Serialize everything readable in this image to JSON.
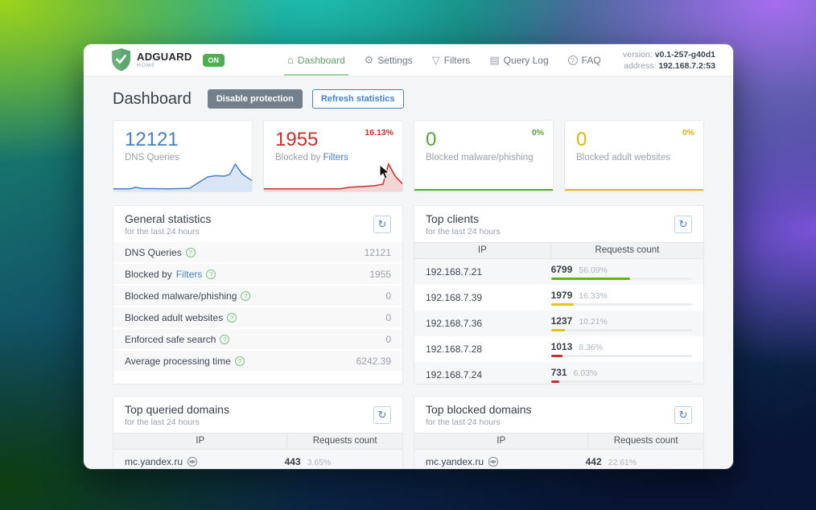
{
  "header": {
    "logo": {
      "brand": "ADGUARD",
      "sub": "HOME",
      "badge": "ON"
    },
    "nav": [
      {
        "label": "Dashboard"
      },
      {
        "label": "Settings"
      },
      {
        "label": "Filters"
      },
      {
        "label": "Query Log"
      },
      {
        "label": "FAQ"
      }
    ],
    "version_label": "version:",
    "version_value": "v0.1-257-g40d1",
    "address_label": "address:",
    "address_value": "192.168.7.2:53"
  },
  "page": {
    "title": "Dashboard",
    "disable_button": "Disable protection",
    "refresh_button": "Refresh statistics"
  },
  "icons": {
    "home": "⌂",
    "gear": "⚙",
    "funnel": "▽",
    "doc": "▤",
    "question": "?",
    "refresh": "↻",
    "help": "?"
  },
  "stat_cards": [
    {
      "value": "12121",
      "label": "DNS Queries",
      "pct": "",
      "color": "#467fcf",
      "fill": "rgba(70,127,207,0.20)"
    },
    {
      "value": "1955",
      "label_prefix": "Blocked by",
      "label_link": "Filters",
      "pct": "16.13%",
      "color": "#c9302c",
      "fill": "rgba(201,48,44,0.20)"
    },
    {
      "value": "0",
      "label": "Blocked malware/phishing",
      "pct": "0%",
      "color": "#56a832",
      "fill": "rgba(86,168,50,0.15)"
    },
    {
      "value": "0",
      "label": "Blocked adult websites",
      "pct": "0%",
      "color": "#e0b50f",
      "fill": "rgba(224,181,15,0.15)"
    }
  ],
  "chart_data": [
    {
      "type": "area",
      "name": "DNS Queries sparkline (last 24h)",
      "ylim": [
        0,
        1
      ],
      "points": [
        [
          0,
          0.04
        ],
        [
          12,
          0.04
        ],
        [
          16,
          0.1
        ],
        [
          21,
          0.05
        ],
        [
          40,
          0.04
        ],
        [
          55,
          0.06
        ],
        [
          62,
          0.3
        ],
        [
          68,
          0.5
        ],
        [
          74,
          0.55
        ],
        [
          80,
          0.53
        ],
        [
          84,
          0.6
        ],
        [
          88,
          1.0
        ],
        [
          93,
          0.62
        ],
        [
          100,
          0.36
        ]
      ]
    },
    {
      "type": "area",
      "name": "Blocked by Filters sparkline (last 24h)",
      "ylim": [
        0,
        1
      ],
      "points": [
        [
          0,
          0.04
        ],
        [
          55,
          0.04
        ],
        [
          62,
          0.1
        ],
        [
          72,
          0.13
        ],
        [
          80,
          0.16
        ],
        [
          86,
          0.22
        ],
        [
          90,
          1.0
        ],
        [
          95,
          0.52
        ],
        [
          100,
          0.24
        ]
      ]
    },
    {
      "type": "area",
      "name": "Blocked malware/phishing sparkline (last 24h)",
      "ylim": [
        0,
        1
      ],
      "points": [
        [
          0,
          0.0
        ],
        [
          100,
          0.0
        ]
      ]
    },
    {
      "type": "area",
      "name": "Blocked adult websites sparkline (last 24h)",
      "ylim": [
        0,
        1
      ],
      "points": [
        [
          0,
          0.0
        ],
        [
          100,
          0.0
        ]
      ]
    }
  ],
  "general": {
    "title": "General statistics",
    "subtitle": "for the last 24 hours",
    "rows": [
      {
        "label": "DNS Queries",
        "value": "12121"
      },
      {
        "label_prefix": "Blocked by",
        "label_link": "Filters",
        "value": "1955"
      },
      {
        "label": "Blocked malware/phishing",
        "value": "0"
      },
      {
        "label": "Blocked adult websites",
        "value": "0"
      },
      {
        "label": "Enforced safe search",
        "value": "0"
      },
      {
        "label": "Average processing time",
        "value": "6242.39"
      }
    ]
  },
  "top_clients": {
    "title": "Top clients",
    "subtitle": "for the last 24 hours",
    "col_ip": "IP",
    "col_count": "Requests count",
    "rows": [
      {
        "ip": "192.168.7.21",
        "count": "6799",
        "pct": "56.09%",
        "bar_color": "#5eba00"
      },
      {
        "ip": "192.168.7.39",
        "count": "1979",
        "pct": "16.33%",
        "bar_color": "#e5c11c"
      },
      {
        "ip": "192.168.7.36",
        "count": "1237",
        "pct": "10.21%",
        "bar_color": "#e5c11c"
      },
      {
        "ip": "192.168.7.28",
        "count": "1013",
        "pct": "8.36%",
        "bar_color": "#c9302c"
      },
      {
        "ip": "192.168.7.24",
        "count": "731",
        "pct": "6.03%",
        "bar_color": "#c9302c"
      }
    ]
  },
  "top_queried": {
    "title": "Top queried domains",
    "subtitle": "for the last 24 hours",
    "col_ip": "IP",
    "col_count": "Requests count",
    "rows": [
      {
        "domain": "mc.yandex.ru",
        "count": "443",
        "pct": "3.65%"
      }
    ]
  },
  "top_blocked": {
    "title": "Top blocked domains",
    "subtitle": "for the last 24 hours",
    "col_ip": "IP",
    "col_count": "Requests count",
    "rows": [
      {
        "domain": "mc.yandex.ru",
        "count": "442",
        "pct": "22.61%"
      }
    ]
  }
}
